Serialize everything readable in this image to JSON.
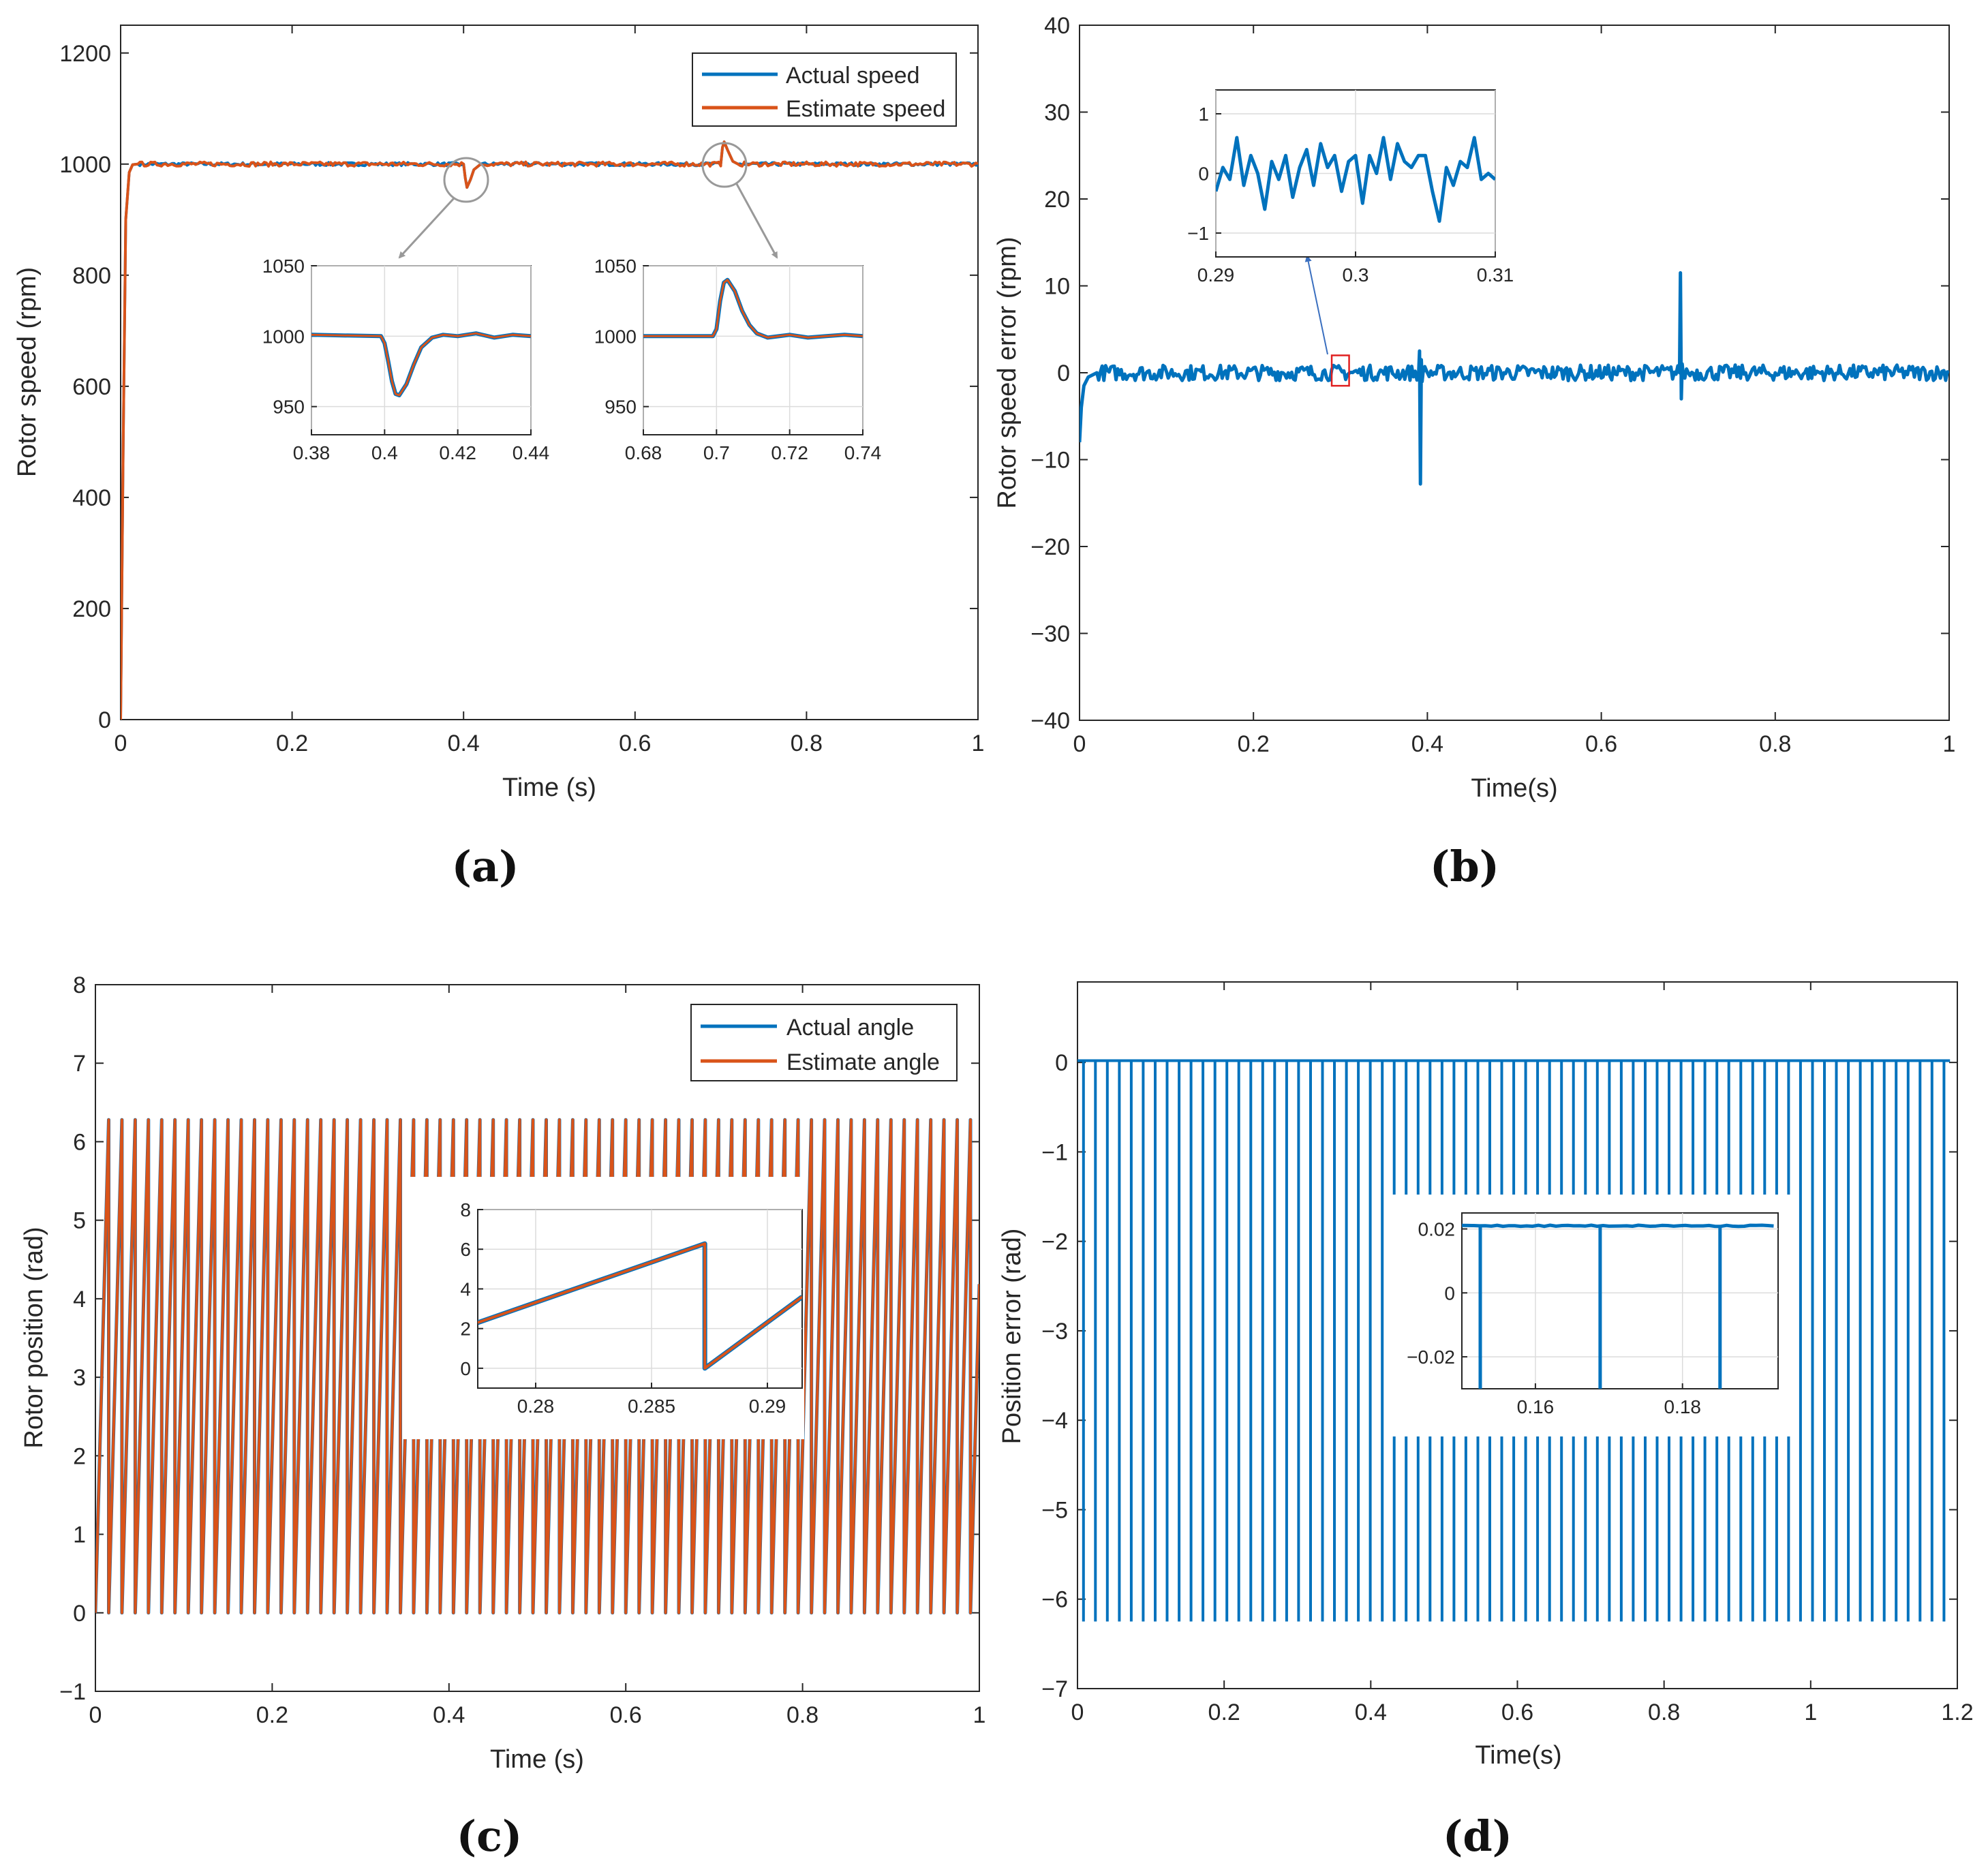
{
  "colors": {
    "blue": "#0072BD",
    "orange": "#D95319",
    "axis": "#262626",
    "grid": "#dcdcdc",
    "highlight": "#e02020",
    "arrow": "#999999"
  },
  "chart_data": [
    {
      "id": "a",
      "type": "line",
      "caption": "(a)",
      "xlabel": "Time (s)",
      "ylabel": "Rotor speed (rpm)",
      "xlim": [
        0,
        1
      ],
      "ylim": [
        0,
        1250
      ],
      "xticks": [
        0,
        0.2,
        0.4,
        0.6,
        0.8,
        1
      ],
      "xtick_labels": [
        "0",
        "0.2",
        "0.4",
        "0.6",
        "0.8",
        "1"
      ],
      "yticks": [
        0,
        200,
        400,
        600,
        800,
        1000,
        1200
      ],
      "ytick_labels": [
        "0",
        "200",
        "400",
        "600",
        "800",
        "1000",
        "1200"
      ],
      "grid": false,
      "legend_position": "top-right",
      "series": [
        {
          "name": "Actual speed",
          "color": "#0072BD",
          "x": [
            0,
            0.003,
            0.006,
            0.01,
            0.014,
            0.02,
            0.4,
            0.402,
            0.404,
            0.408,
            0.412,
            0.42,
            0.7,
            0.702,
            0.704,
            0.708,
            0.714,
            0.72,
            1
          ],
          "y": [
            0,
            500,
            900,
            985,
            999,
            1000,
            1000,
            975,
            958,
            972,
            990,
            1000,
            1000,
            1030,
            1040,
            1025,
            1005,
            1000,
            1000
          ]
        },
        {
          "name": "Estimate speed",
          "color": "#D95319",
          "x": [
            0,
            0.003,
            0.006,
            0.01,
            0.014,
            0.02,
            0.4,
            0.402,
            0.404,
            0.408,
            0.412,
            0.42,
            0.7,
            0.702,
            0.704,
            0.708,
            0.714,
            0.72,
            1
          ],
          "y": [
            0,
            500,
            900,
            985,
            999,
            1000,
            1000,
            975,
            958,
            972,
            990,
            1000,
            1000,
            1030,
            1040,
            1025,
            1005,
            1000,
            1000
          ]
        }
      ],
      "insets": [
        {
          "xlim": [
            0.38,
            0.44
          ],
          "ylim": [
            930,
            1050
          ],
          "xticks": [
            0.38,
            0.4,
            0.42,
            0.44
          ],
          "xtick_labels": [
            "0.38",
            "0.4",
            "0.42",
            "0.44"
          ],
          "yticks": [
            950,
            1000,
            1050
          ],
          "ytick_labels": [
            "950",
            "1000",
            "1050"
          ],
          "x": [
            0.38,
            0.399,
            0.4,
            0.401,
            0.402,
            0.403,
            0.404,
            0.406,
            0.408,
            0.41,
            0.413,
            0.416,
            0.42,
            0.425,
            0.43,
            0.435,
            0.44
          ],
          "y": [
            1001,
            1000,
            995,
            982,
            968,
            959,
            958,
            966,
            980,
            992,
            999,
            1001,
            1000,
            1002,
            999,
            1001,
            1000
          ]
        },
        {
          "xlim": [
            0.68,
            0.74
          ],
          "ylim": [
            930,
            1050
          ],
          "xticks": [
            0.68,
            0.7,
            0.72,
            0.74
          ],
          "xtick_labels": [
            "0.68",
            "0.7",
            "0.72",
            "0.74"
          ],
          "yticks": [
            950,
            1000,
            1050
          ],
          "ytick_labels": [
            "950",
            "1000",
            "1050"
          ],
          "x": [
            0.68,
            0.699,
            0.7,
            0.701,
            0.702,
            0.703,
            0.705,
            0.707,
            0.709,
            0.711,
            0.714,
            0.72,
            0.725,
            0.73,
            0.735,
            0.74
          ],
          "y": [
            1000,
            1000,
            1005,
            1025,
            1038,
            1040,
            1032,
            1018,
            1008,
            1002,
            999,
            1001,
            999,
            1000,
            1001,
            1000
          ]
        }
      ]
    },
    {
      "id": "b",
      "type": "line",
      "caption": "(b)",
      "xlabel": "Time(s)",
      "ylabel": "Rotor speed error (rpm)",
      "xlim": [
        0,
        1
      ],
      "ylim": [
        -40,
        40
      ],
      "xticks": [
        0,
        0.2,
        0.4,
        0.6,
        0.8,
        1
      ],
      "xtick_labels": [
        "0",
        "0.2",
        "0.4",
        "0.6",
        "0.8",
        "1"
      ],
      "yticks": [
        -40,
        -30,
        -20,
        -10,
        0,
        10,
        20,
        30,
        40
      ],
      "ytick_labels": [
        "−40",
        "−30",
        "−20",
        "−10",
        "0",
        "10",
        "20",
        "30",
        "40"
      ],
      "grid": false,
      "series": [
        {
          "color": "#0072BD",
          "x": [
            0,
            0.002,
            0.005,
            0.01,
            0.02,
            0.39,
            0.391,
            0.392,
            0.393,
            0.394,
            0.395,
            0.4,
            0.69,
            0.691,
            0.692,
            0.693,
            0.694,
            0.7,
            1
          ],
          "y": [
            -8,
            -4,
            -1.5,
            -0.5,
            0,
            0,
            2.5,
            -12.8,
            1.5,
            -1,
            0,
            0,
            0,
            11.5,
            -3,
            1,
            0,
            0,
            0
          ]
        }
      ],
      "highlight_box": {
        "x": [
          0.29,
          0.31
        ],
        "y": [
          -1.5,
          2
        ]
      },
      "insets": [
        {
          "xlim": [
            0.29,
            0.31
          ],
          "ylim": [
            -1.4,
            1.4
          ],
          "xticks": [
            0.29,
            0.3,
            0.31
          ],
          "xtick_labels": [
            "0.29",
            "0.3",
            "0.31"
          ],
          "yticks": [
            -1,
            0,
            1
          ],
          "ytick_labels": [
            "−1",
            "0",
            "1"
          ],
          "x": [
            0.29,
            0.2905,
            0.291,
            0.2915,
            0.292,
            0.2925,
            0.293,
            0.2935,
            0.294,
            0.2945,
            0.295,
            0.2955,
            0.296,
            0.2965,
            0.297,
            0.2975,
            0.298,
            0.2985,
            0.299,
            0.2995,
            0.3,
            0.3005,
            0.301,
            0.3015,
            0.302,
            0.3025,
            0.303,
            0.3035,
            0.304,
            0.3045,
            0.305,
            0.3055,
            0.306,
            0.3065,
            0.307,
            0.3075,
            0.308,
            0.3085,
            0.309,
            0.3095,
            0.31
          ],
          "y": [
            -0.3,
            0.1,
            -0.1,
            0.6,
            -0.2,
            0.3,
            0.0,
            -0.6,
            0.2,
            -0.1,
            0.3,
            -0.4,
            0.1,
            0.4,
            -0.2,
            0.5,
            0.1,
            0.3,
            -0.3,
            0.2,
            0.3,
            -0.5,
            0.3,
            0.0,
            0.6,
            -0.1,
            0.5,
            0.2,
            0.1,
            0.3,
            0.3,
            -0.3,
            -0.8,
            0.1,
            -0.2,
            0.2,
            0.1,
            0.6,
            -0.1,
            0.0,
            -0.1
          ]
        }
      ]
    },
    {
      "id": "c",
      "type": "line",
      "caption": "(c)",
      "xlabel": "Time (s)",
      "ylabel": "Rotor position (rad)",
      "xlim": [
        0,
        1
      ],
      "ylim": [
        -1,
        8
      ],
      "xticks": [
        0,
        0.2,
        0.4,
        0.6,
        0.8,
        1
      ],
      "xtick_labels": [
        "0",
        "0.2",
        "0.4",
        "0.6",
        "0.8",
        "1"
      ],
      "yticks": [
        -1,
        0,
        1,
        2,
        3,
        4,
        5,
        6,
        7,
        8
      ],
      "ytick_labels": [
        "−1",
        "0",
        "1",
        "2",
        "3",
        "4",
        "5",
        "6",
        "7",
        "8"
      ],
      "grid": false,
      "legend_position": "top-right",
      "sawtooth": {
        "period_s": 0.015,
        "min_rad": 0,
        "max_rad": 6.28
      },
      "series": [
        {
          "name": "Actual angle",
          "color": "#0072BD"
        },
        {
          "name": "Estimate angle",
          "color": "#D95319"
        }
      ],
      "insets": [
        {
          "xlim": [
            0.2775,
            0.2915
          ],
          "ylim": [
            -1,
            8
          ],
          "xticks": [
            0.28,
            0.285,
            0.29
          ],
          "xtick_labels": [
            "0.28",
            "0.285",
            "0.29"
          ],
          "yticks": [
            0,
            2,
            4,
            6,
            8
          ],
          "ytick_labels": [
            "0",
            "2",
            "4",
            "6",
            "8"
          ],
          "x": [
            0.2775,
            0.2873,
            0.2873,
            0.2915
          ],
          "y": [
            2.3,
            6.28,
            0,
            3.6
          ]
        }
      ]
    },
    {
      "id": "d",
      "type": "line",
      "caption": "(d)",
      "xlabel": "Time(s)",
      "ylabel": "Position error (rad)",
      "xlim": [
        0,
        1.2
      ],
      "ylim": [
        -7,
        0.9
      ],
      "xticks": [
        0,
        0.2,
        0.4,
        0.6,
        0.8,
        1,
        1.2
      ],
      "xtick_labels": [
        "0",
        "0.2",
        "0.4",
        "0.6",
        "0.8",
        "1",
        "1.2"
      ],
      "yticks": [
        -7,
        -6,
        -5,
        -4,
        -3,
        -2,
        -1,
        0
      ],
      "ytick_labels": [
        "−7",
        "−6",
        "−5",
        "−4",
        "−3",
        "−2",
        "−1",
        "0"
      ],
      "grid": false,
      "spikes": {
        "period_s": 0.0163,
        "baseline_rad": 0.02,
        "spike_rad": -6.25
      },
      "series": [
        {
          "color": "#0072BD"
        }
      ],
      "insets": [
        {
          "xlim": [
            0.15,
            0.193
          ],
          "ylim": [
            -0.03,
            0.025
          ],
          "xticks": [
            0.16,
            0.18
          ],
          "xtick_labels": [
            "0.16",
            "0.18"
          ],
          "yticks": [
            -0.02,
            0,
            0.02
          ],
          "ytick_labels": [
            "−0.02",
            "0",
            "0.02"
          ],
          "baseline": 0.021,
          "spike_x": [
            0.1525,
            0.1688,
            0.1851
          ]
        }
      ]
    }
  ]
}
